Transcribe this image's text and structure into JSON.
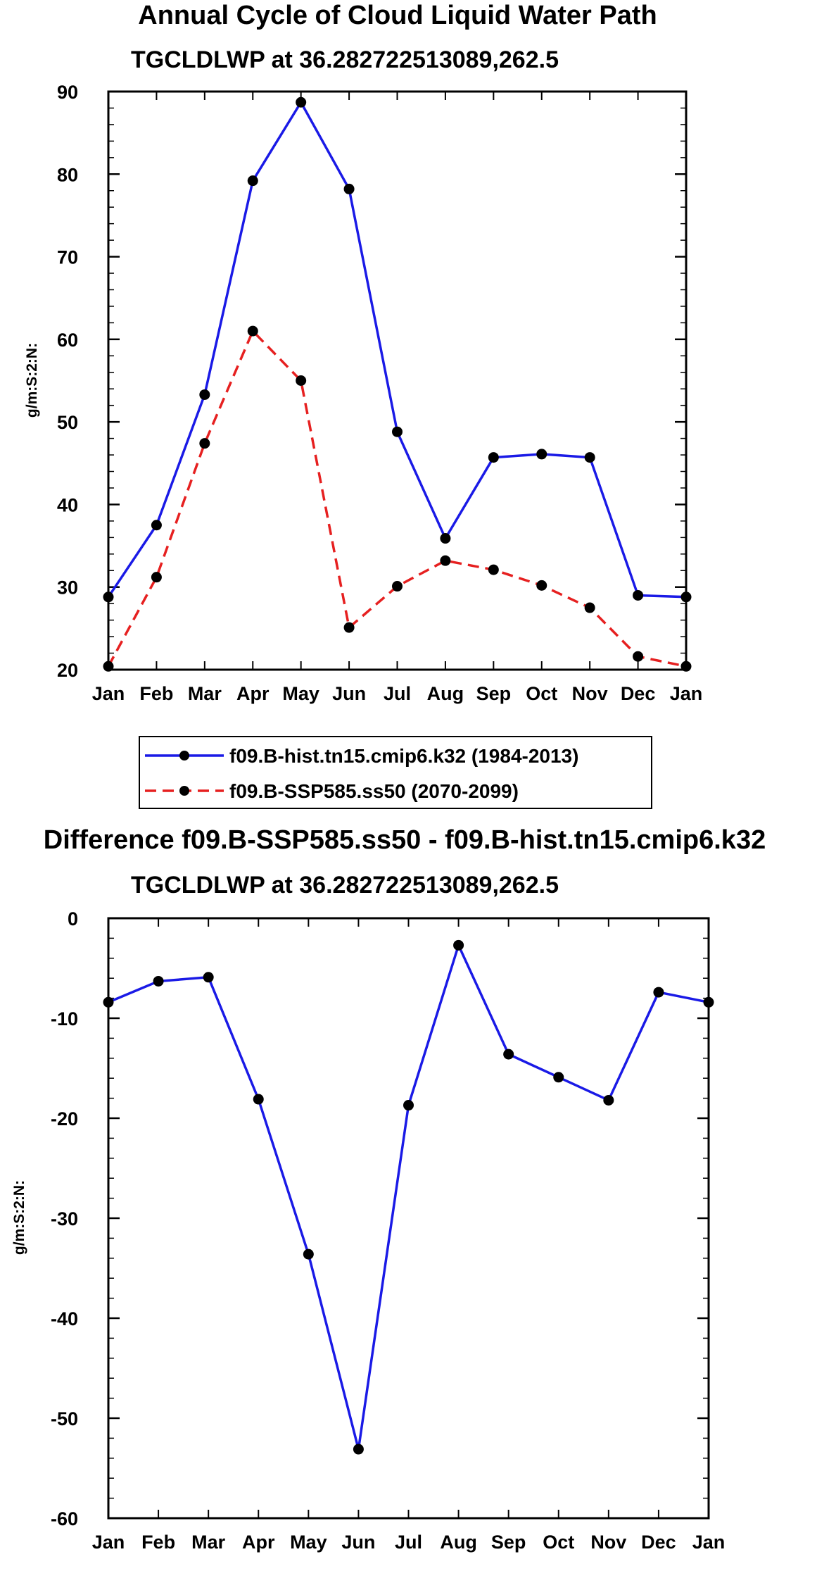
{
  "colors": {
    "hist": "#1a1ae6",
    "ssp": "#e62020",
    "diff": "#1a1ae6"
  },
  "chart_data": [
    {
      "type": "line",
      "title": "Annual Cycle of Cloud Liquid Water Path",
      "subtitle": "TGCLDLWP at 36.282722513089,262.5",
      "xlabel": "",
      "ylabel": "g/m:S:2:N:",
      "categories": [
        "Jan",
        "Feb",
        "Mar",
        "Apr",
        "May",
        "Jun",
        "Jul",
        "Aug",
        "Sep",
        "Oct",
        "Nov",
        "Dec",
        "Jan"
      ],
      "ylim": [
        20,
        90
      ],
      "yticks": [
        "20",
        "30",
        "40",
        "50",
        "60",
        "70",
        "80",
        "90"
      ],
      "legend_position": "below",
      "series": [
        {
          "name": "f09.B-hist.tn15.cmip6.k32 (1984-2013)",
          "style": "solid",
          "color_key": "hist",
          "values": [
            28.8,
            37.5,
            53.3,
            79.2,
            88.7,
            78.2,
            48.8,
            35.9,
            45.7,
            46.1,
            45.7,
            29.0,
            28.8
          ]
        },
        {
          "name": "f09.B-SSP585.ss50 (2070-2099)",
          "style": "dashed",
          "color_key": "ssp",
          "values": [
            20.4,
            31.2,
            47.4,
            61.0,
            55.0,
            25.1,
            30.1,
            33.2,
            32.1,
            30.2,
            27.5,
            21.6,
            20.4
          ]
        }
      ]
    },
    {
      "type": "line",
      "title": "Difference f09.B-SSP585.ss50 - f09.B-hist.tn15.cmip6.k32",
      "subtitle": "TGCLDLWP at 36.282722513089,262.5",
      "xlabel": "",
      "ylabel": "g/m:S:2:N:",
      "categories": [
        "Jan",
        "Feb",
        "Mar",
        "Apr",
        "May",
        "Jun",
        "Jul",
        "Aug",
        "Sep",
        "Oct",
        "Nov",
        "Dec",
        "Jan"
      ],
      "ylim": [
        -60,
        0
      ],
      "yticks": [
        "-60",
        "-50",
        "-40",
        "-30",
        "-20",
        "-10",
        "0"
      ],
      "series": [
        {
          "name": "difference",
          "style": "solid",
          "color_key": "diff",
          "values": [
            -8.4,
            -6.3,
            -5.9,
            -18.1,
            -33.6,
            -53.1,
            -18.7,
            -2.7,
            -13.6,
            -15.9,
            -18.2,
            -7.4,
            -8.4
          ]
        }
      ]
    }
  ]
}
